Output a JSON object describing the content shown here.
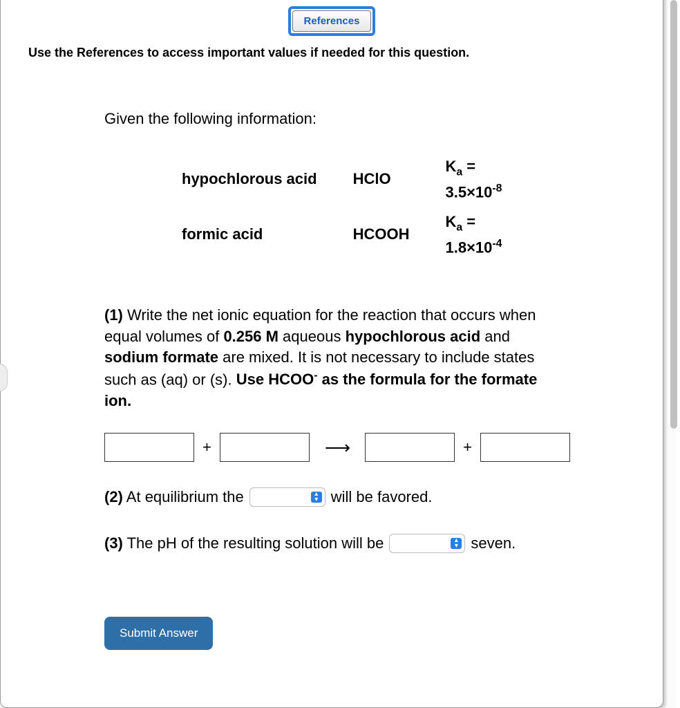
{
  "references_button": "References",
  "instruction": "Use the References to access important values if needed for this question.",
  "given_label": "Given the following information:",
  "acids": [
    {
      "name": "hypochlorous acid",
      "formula": "HClO",
      "ka_base": "3.5",
      "ka_exp": "-8"
    },
    {
      "name": "formic acid",
      "formula": "HCOOH",
      "ka_base": "1.8",
      "ka_exp": "-4"
    }
  ],
  "q1": {
    "num": "(1)",
    "text_a": " Write the net ionic equation for the reaction that occurs when equal volumes of ",
    "conc": "0.256 M",
    "text_b": " aqueous ",
    "reagent1": "hypochlorous acid",
    "text_c": " and ",
    "reagent2": "sodium formate",
    "text_d": " are mixed. It is not necessary to include states such as (aq) or (s). ",
    "hint_a": "Use HCOO",
    "hint_sup": "-",
    "hint_b": " as the formula for the formate ion."
  },
  "eq": {
    "plus": "+",
    "arrow": "⟶"
  },
  "q2": {
    "num": "(2)",
    "text_a": " At equilibrium the ",
    "text_b": " will be favored."
  },
  "q3": {
    "num": "(3)",
    "text_a": " The pH of the resulting solution will be ",
    "text_b": " seven."
  },
  "submit_label": "Submit Answer",
  "select_glyph": "▴▾"
}
